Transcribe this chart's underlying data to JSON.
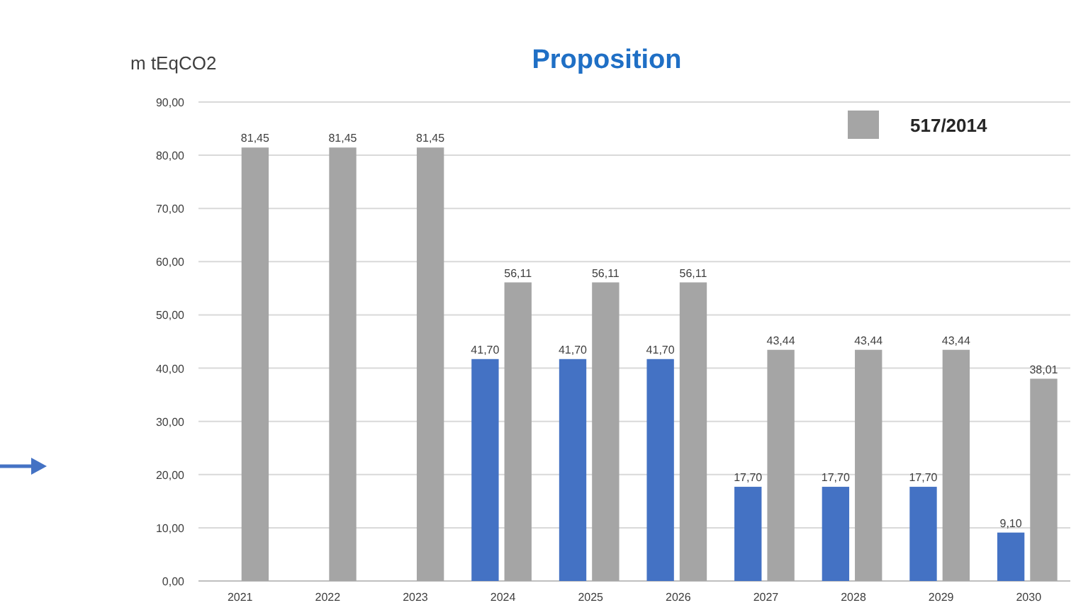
{
  "chart_data": {
    "type": "bar",
    "title": "Proposition",
    "ylabel": "m tEqCO2",
    "categories": [
      "2021",
      "2022",
      "2023",
      "2024",
      "2025",
      "2026",
      "2027",
      "2028",
      "2029",
      "2030"
    ],
    "series": [
      {
        "color": "#4472c4",
        "values": [
          null,
          null,
          null,
          41.7,
          41.7,
          41.7,
          17.7,
          17.7,
          17.7,
          9.1
        ],
        "value_labels": [
          null,
          null,
          null,
          "41,70",
          "41,70",
          "41,70",
          "17,70",
          "17,70",
          "17,70",
          "9,10"
        ]
      },
      {
        "name": "517/2014",
        "color": "#a5a5a5",
        "values": [
          81.45,
          81.45,
          81.45,
          56.11,
          56.11,
          56.11,
          43.44,
          43.44,
          43.44,
          38.01
        ],
        "value_labels": [
          "81,45",
          "81,45",
          "81,45",
          "56,11",
          "56,11",
          "56,11",
          "43,44",
          "43,44",
          "43,44",
          "38,01"
        ]
      }
    ],
    "ylim": [
      0,
      90
    ],
    "yticks": [
      {
        "value": 0,
        "label": "0,00"
      },
      {
        "value": 10,
        "label": "10,00"
      },
      {
        "value": 20,
        "label": "20,00"
      },
      {
        "value": 30,
        "label": "30,00"
      },
      {
        "value": 40,
        "label": "40,00"
      },
      {
        "value": 50,
        "label": "50,00"
      },
      {
        "value": 60,
        "label": "60,00"
      },
      {
        "value": 70,
        "label": "70,00"
      },
      {
        "value": 80,
        "label": "80,00"
      },
      {
        "value": 90,
        "label": "90,00"
      }
    ],
    "grid": "y",
    "legend": "top right"
  }
}
